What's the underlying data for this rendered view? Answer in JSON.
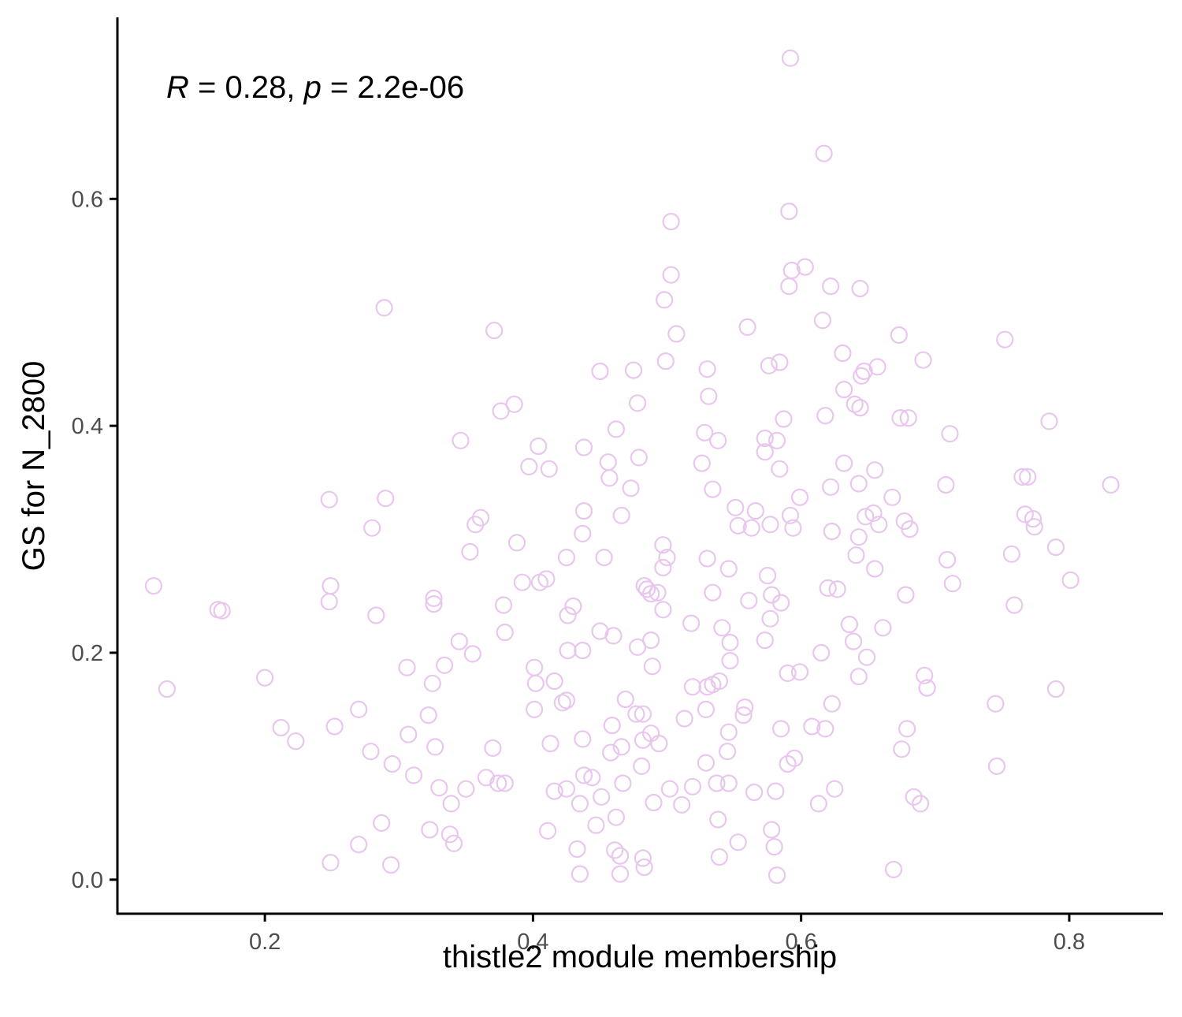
{
  "chart_data": {
    "type": "scatter",
    "xlabel": "thistle2 module membership",
    "ylabel": "GS for N_2800",
    "xlim": [
      0.09,
      0.87
    ],
    "ylim": [
      -0.03,
      0.76
    ],
    "xticks": [
      0.2,
      0.4,
      0.6,
      0.8
    ],
    "yticks": [
      0.0,
      0.2,
      0.4,
      0.6
    ],
    "xtick_labels": [
      "0.2",
      "0.4",
      "0.6",
      "0.8"
    ],
    "ytick_labels": [
      "0.0",
      "0.2",
      "0.4",
      "0.6"
    ],
    "annotation": {
      "r_symbol": "R",
      "r_rest": " = 0.28, ",
      "p_symbol": "p",
      "p_rest": " = 2.2e-06"
    },
    "grid": false,
    "legend": "none",
    "point_color": "#e8c6ee",
    "points": [
      [
        0.592,
        0.724
      ],
      [
        0.617,
        0.64
      ],
      [
        0.591,
        0.589
      ],
      [
        0.503,
        0.58
      ],
      [
        0.603,
        0.54
      ],
      [
        0.593,
        0.537
      ],
      [
        0.503,
        0.533
      ],
      [
        0.622,
        0.523
      ],
      [
        0.591,
        0.523
      ],
      [
        0.644,
        0.521
      ],
      [
        0.498,
        0.511
      ],
      [
        0.289,
        0.504
      ],
      [
        0.616,
        0.493
      ],
      [
        0.56,
        0.487
      ],
      [
        0.371,
        0.484
      ],
      [
        0.507,
        0.481
      ],
      [
        0.673,
        0.48
      ],
      [
        0.752,
        0.476
      ],
      [
        0.631,
        0.464
      ],
      [
        0.691,
        0.458
      ],
      [
        0.499,
        0.457
      ],
      [
        0.584,
        0.456
      ],
      [
        0.576,
        0.453
      ],
      [
        0.657,
        0.452
      ],
      [
        0.53,
        0.45
      ],
      [
        0.45,
        0.448
      ],
      [
        0.475,
        0.449
      ],
      [
        0.647,
        0.448
      ],
      [
        0.645,
        0.444
      ],
      [
        0.632,
        0.432
      ],
      [
        0.531,
        0.426
      ],
      [
        0.478,
        0.42
      ],
      [
        0.386,
        0.419
      ],
      [
        0.64,
        0.419
      ],
      [
        0.644,
        0.416
      ],
      [
        0.376,
        0.413
      ],
      [
        0.618,
        0.409
      ],
      [
        0.674,
        0.407
      ],
      [
        0.68,
        0.407
      ],
      [
        0.587,
        0.406
      ],
      [
        0.785,
        0.404
      ],
      [
        0.462,
        0.397
      ],
      [
        0.528,
        0.394
      ],
      [
        0.711,
        0.393
      ],
      [
        0.573,
        0.389
      ],
      [
        0.538,
        0.387
      ],
      [
        0.582,
        0.387
      ],
      [
        0.346,
        0.387
      ],
      [
        0.404,
        0.382
      ],
      [
        0.438,
        0.381
      ],
      [
        0.573,
        0.377
      ],
      [
        0.479,
        0.372
      ],
      [
        0.526,
        0.367
      ],
      [
        0.632,
        0.367
      ],
      [
        0.456,
        0.368
      ],
      [
        0.397,
        0.364
      ],
      [
        0.412,
        0.362
      ],
      [
        0.584,
        0.362
      ],
      [
        0.655,
        0.361
      ],
      [
        0.765,
        0.355
      ],
      [
        0.769,
        0.355
      ],
      [
        0.457,
        0.354
      ],
      [
        0.643,
        0.349
      ],
      [
        0.708,
        0.348
      ],
      [
        0.831,
        0.348
      ],
      [
        0.473,
        0.345
      ],
      [
        0.534,
        0.344
      ],
      [
        0.622,
        0.346
      ],
      [
        0.599,
        0.337
      ],
      [
        0.668,
        0.337
      ],
      [
        0.248,
        0.335
      ],
      [
        0.29,
        0.336
      ],
      [
        0.438,
        0.325
      ],
      [
        0.551,
        0.328
      ],
      [
        0.566,
        0.325
      ],
      [
        0.654,
        0.323
      ],
      [
        0.466,
        0.321
      ],
      [
        0.592,
        0.321
      ],
      [
        0.648,
        0.32
      ],
      [
        0.767,
        0.322
      ],
      [
        0.361,
        0.319
      ],
      [
        0.677,
        0.316
      ],
      [
        0.773,
        0.318
      ],
      [
        0.357,
        0.313
      ],
      [
        0.553,
        0.312
      ],
      [
        0.563,
        0.31
      ],
      [
        0.594,
        0.31
      ],
      [
        0.658,
        0.313
      ],
      [
        0.28,
        0.31
      ],
      [
        0.577,
        0.313
      ],
      [
        0.681,
        0.309
      ],
      [
        0.774,
        0.311
      ],
      [
        0.623,
        0.307
      ],
      [
        0.437,
        0.305
      ],
      [
        0.643,
        0.302
      ],
      [
        0.388,
        0.297
      ],
      [
        0.497,
        0.295
      ],
      [
        0.79,
        0.293
      ],
      [
        0.353,
        0.289
      ],
      [
        0.641,
        0.286
      ],
      [
        0.757,
        0.287
      ],
      [
        0.425,
        0.284
      ],
      [
        0.453,
        0.284
      ],
      [
        0.5,
        0.284
      ],
      [
        0.53,
        0.283
      ],
      [
        0.709,
        0.282
      ],
      [
        0.497,
        0.275
      ],
      [
        0.546,
        0.274
      ],
      [
        0.655,
        0.274
      ],
      [
        0.575,
        0.268
      ],
      [
        0.41,
        0.265
      ],
      [
        0.392,
        0.262
      ],
      [
        0.405,
        0.262
      ],
      [
        0.801,
        0.264
      ],
      [
        0.117,
        0.259
      ],
      [
        0.249,
        0.259
      ],
      [
        0.483,
        0.259
      ],
      [
        0.713,
        0.261
      ],
      [
        0.62,
        0.257
      ],
      [
        0.627,
        0.256
      ],
      [
        0.485,
        0.256
      ],
      [
        0.488,
        0.252
      ],
      [
        0.534,
        0.253
      ],
      [
        0.493,
        0.253
      ],
      [
        0.578,
        0.251
      ],
      [
        0.678,
        0.251
      ],
      [
        0.326,
        0.248
      ],
      [
        0.248,
        0.245
      ],
      [
        0.561,
        0.246
      ],
      [
        0.585,
        0.244
      ],
      [
        0.326,
        0.243
      ],
      [
        0.378,
        0.242
      ],
      [
        0.43,
        0.241
      ],
      [
        0.759,
        0.242
      ],
      [
        0.497,
        0.238
      ],
      [
        0.165,
        0.238
      ],
      [
        0.168,
        0.237
      ],
      [
        0.426,
        0.233
      ],
      [
        0.283,
        0.233
      ],
      [
        0.577,
        0.23
      ],
      [
        0.518,
        0.226
      ],
      [
        0.636,
        0.225
      ],
      [
        0.541,
        0.222
      ],
      [
        0.661,
        0.222
      ],
      [
        0.45,
        0.219
      ],
      [
        0.379,
        0.218
      ],
      [
        0.46,
        0.215
      ],
      [
        0.488,
        0.211
      ],
      [
        0.573,
        0.211
      ],
      [
        0.345,
        0.21
      ],
      [
        0.547,
        0.209
      ],
      [
        0.639,
        0.21
      ],
      [
        0.478,
        0.205
      ],
      [
        0.426,
        0.202
      ],
      [
        0.437,
        0.202
      ],
      [
        0.355,
        0.199
      ],
      [
        0.615,
        0.2
      ],
      [
        0.649,
        0.196
      ],
      [
        0.547,
        0.193
      ],
      [
        0.334,
        0.189
      ],
      [
        0.306,
        0.187
      ],
      [
        0.401,
        0.187
      ],
      [
        0.489,
        0.188
      ],
      [
        0.59,
        0.182
      ],
      [
        0.599,
        0.183
      ],
      [
        0.643,
        0.179
      ],
      [
        0.692,
        0.18
      ],
      [
        0.2,
        0.178
      ],
      [
        0.402,
        0.173
      ],
      [
        0.416,
        0.175
      ],
      [
        0.325,
        0.173
      ],
      [
        0.539,
        0.175
      ],
      [
        0.534,
        0.172
      ],
      [
        0.519,
        0.17
      ],
      [
        0.53,
        0.17
      ],
      [
        0.694,
        0.169
      ],
      [
        0.127,
        0.168
      ],
      [
        0.79,
        0.168
      ],
      [
        0.469,
        0.159
      ],
      [
        0.425,
        0.158
      ],
      [
        0.422,
        0.156
      ],
      [
        0.623,
        0.155
      ],
      [
        0.745,
        0.155
      ],
      [
        0.558,
        0.152
      ],
      [
        0.401,
        0.15
      ],
      [
        0.27,
        0.15
      ],
      [
        0.529,
        0.15
      ],
      [
        0.482,
        0.146
      ],
      [
        0.477,
        0.146
      ],
      [
        0.557,
        0.145
      ],
      [
        0.322,
        0.145
      ],
      [
        0.513,
        0.142
      ],
      [
        0.459,
        0.136
      ],
      [
        0.212,
        0.134
      ],
      [
        0.252,
        0.135
      ],
      [
        0.608,
        0.135
      ],
      [
        0.618,
        0.133
      ],
      [
        0.585,
        0.133
      ],
      [
        0.679,
        0.133
      ],
      [
        0.546,
        0.13
      ],
      [
        0.488,
        0.129
      ],
      [
        0.307,
        0.128
      ],
      [
        0.437,
        0.124
      ],
      [
        0.482,
        0.123
      ],
      [
        0.223,
        0.122
      ],
      [
        0.494,
        0.12
      ],
      [
        0.413,
        0.12
      ],
      [
        0.466,
        0.117
      ],
      [
        0.327,
        0.117
      ],
      [
        0.37,
        0.116
      ],
      [
        0.675,
        0.115
      ],
      [
        0.545,
        0.113
      ],
      [
        0.458,
        0.112
      ],
      [
        0.279,
        0.113
      ],
      [
        0.595,
        0.107
      ],
      [
        0.529,
        0.103
      ],
      [
        0.59,
        0.102
      ],
      [
        0.295,
        0.102
      ],
      [
        0.481,
        0.1
      ],
      [
        0.746,
        0.1
      ],
      [
        0.311,
        0.092
      ],
      [
        0.438,
        0.092
      ],
      [
        0.444,
        0.09
      ],
      [
        0.365,
        0.09
      ],
      [
        0.374,
        0.085
      ],
      [
        0.379,
        0.085
      ],
      [
        0.537,
        0.085
      ],
      [
        0.546,
        0.085
      ],
      [
        0.467,
        0.085
      ],
      [
        0.33,
        0.081
      ],
      [
        0.35,
        0.08
      ],
      [
        0.425,
        0.08
      ],
      [
        0.502,
        0.08
      ],
      [
        0.519,
        0.082
      ],
      [
        0.625,
        0.08
      ],
      [
        0.416,
        0.078
      ],
      [
        0.565,
        0.077
      ],
      [
        0.581,
        0.078
      ],
      [
        0.451,
        0.073
      ],
      [
        0.684,
        0.073
      ],
      [
        0.689,
        0.067
      ],
      [
        0.49,
        0.068
      ],
      [
        0.511,
        0.066
      ],
      [
        0.435,
        0.067
      ],
      [
        0.613,
        0.067
      ],
      [
        0.339,
        0.067
      ],
      [
        0.462,
        0.055
      ],
      [
        0.538,
        0.053
      ],
      [
        0.287,
        0.05
      ],
      [
        0.447,
        0.048
      ],
      [
        0.411,
        0.043
      ],
      [
        0.323,
        0.044
      ],
      [
        0.578,
        0.044
      ],
      [
        0.338,
        0.04
      ],
      [
        0.553,
        0.033
      ],
      [
        0.341,
        0.032
      ],
      [
        0.27,
        0.031
      ],
      [
        0.58,
        0.029
      ],
      [
        0.433,
        0.027
      ],
      [
        0.461,
        0.026
      ],
      [
        0.465,
        0.021
      ],
      [
        0.482,
        0.019
      ],
      [
        0.539,
        0.02
      ],
      [
        0.249,
        0.015
      ],
      [
        0.294,
        0.013
      ],
      [
        0.483,
        0.011
      ],
      [
        0.669,
        0.009
      ],
      [
        0.435,
        0.005
      ],
      [
        0.465,
        0.005
      ],
      [
        0.582,
        0.004
      ]
    ]
  }
}
